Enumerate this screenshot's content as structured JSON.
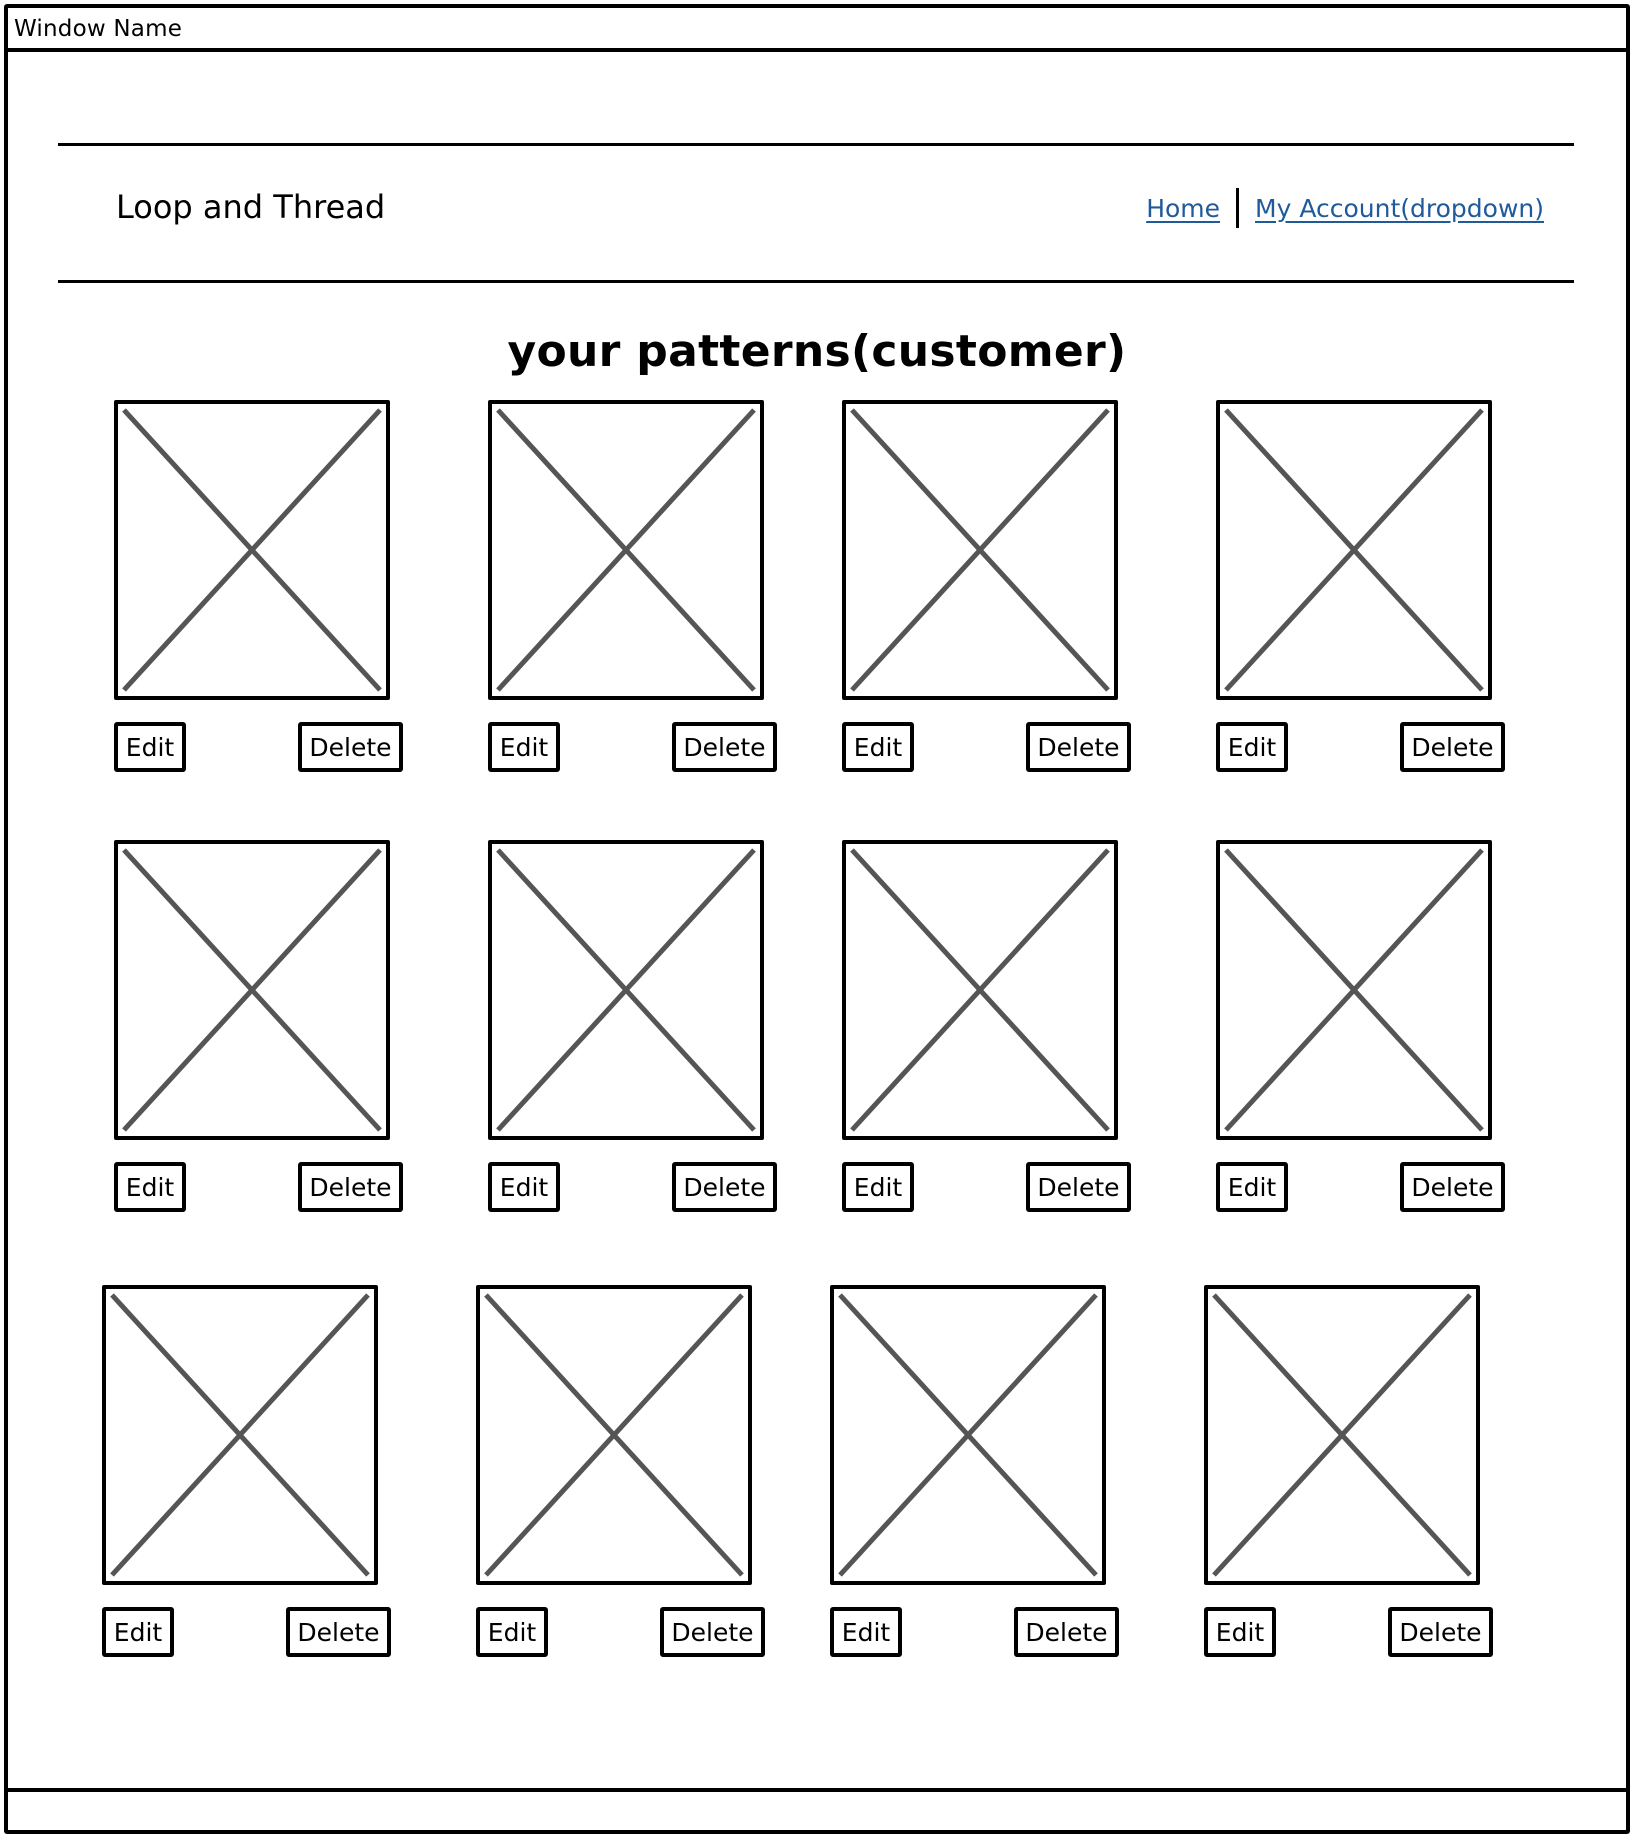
{
  "window": {
    "title": "Window Name"
  },
  "header": {
    "brand": "Loop and Thread",
    "nav": {
      "home": "Home",
      "account": "My Account(dropdown)"
    }
  },
  "page": {
    "title": "your patterns(customer)"
  },
  "cards": [
    {
      "edit": "Edit",
      "delete": "Delete"
    },
    {
      "edit": "Edit",
      "delete": "Delete"
    },
    {
      "edit": "Edit",
      "delete": "Delete"
    },
    {
      "edit": "Edit",
      "delete": "Delete"
    },
    {
      "edit": "Edit",
      "delete": "Delete"
    },
    {
      "edit": "Edit",
      "delete": "Delete"
    },
    {
      "edit": "Edit",
      "delete": "Delete"
    },
    {
      "edit": "Edit",
      "delete": "Delete"
    },
    {
      "edit": "Edit",
      "delete": "Delete"
    },
    {
      "edit": "Edit",
      "delete": "Delete"
    },
    {
      "edit": "Edit",
      "delete": "Delete"
    },
    {
      "edit": "Edit",
      "delete": "Delete"
    }
  ]
}
